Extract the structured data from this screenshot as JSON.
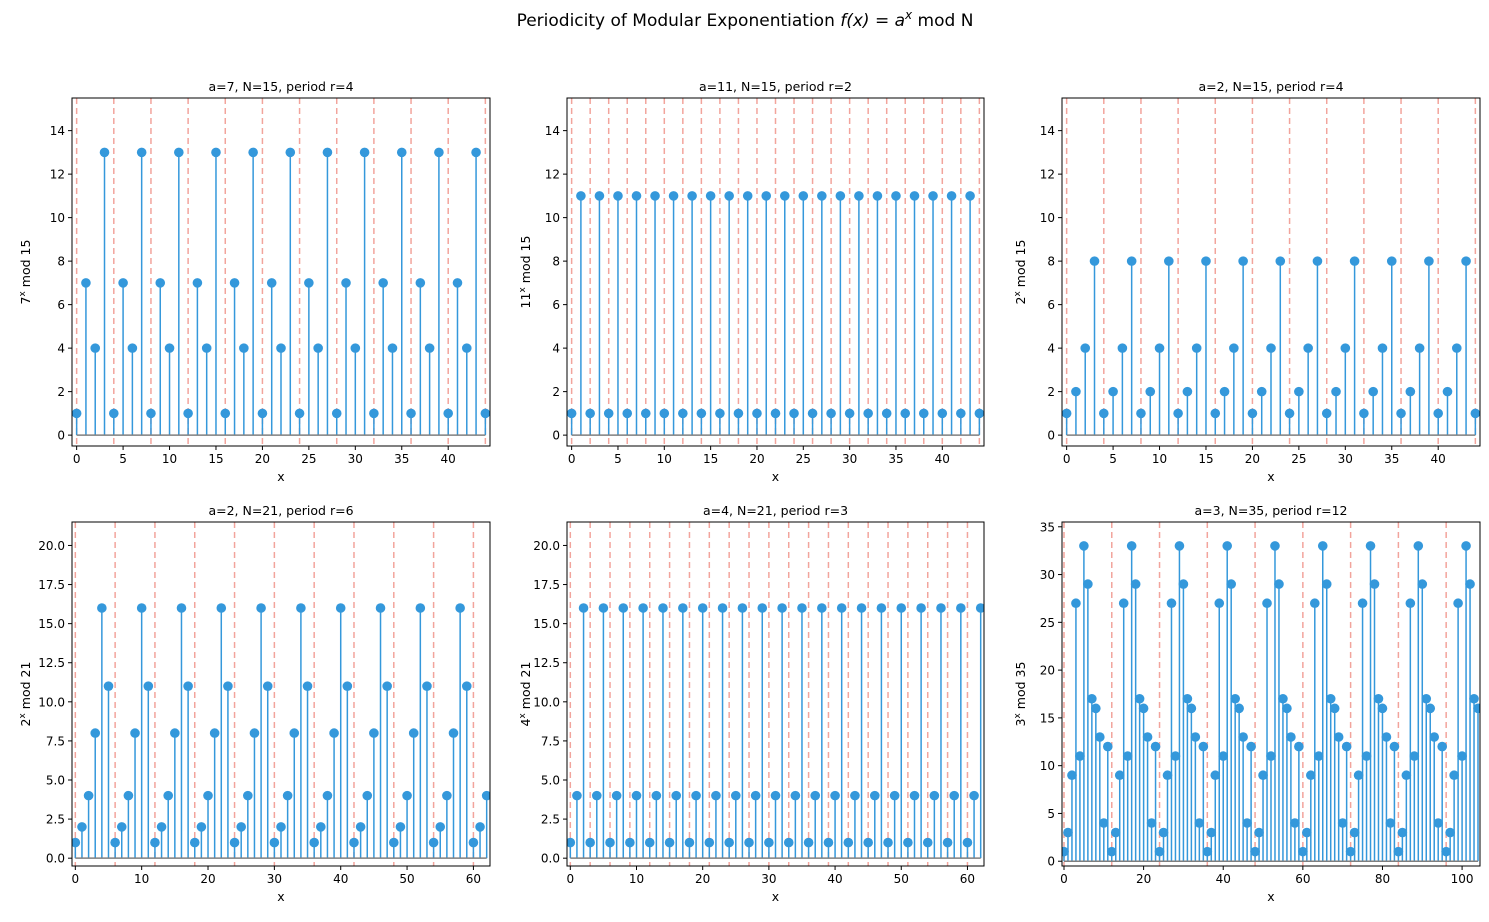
{
  "figure": {
    "title_prefix": "Periodicity of Modular Exponentiation ",
    "title_math": "f(x) = a",
    "title_sup": "x",
    "title_suffix": " mod N"
  },
  "colors": {
    "stem": "#3498db",
    "marker": "#3498db",
    "baseline": "#7f7f7f",
    "period_line": "#e74c3c",
    "axes": "#000000"
  },
  "chart_data": [
    {
      "type": "stem",
      "a": 7,
      "N": 15,
      "r": 4,
      "title": "a=7, N=15, period r=4",
      "xlabel": "x",
      "ylabel_base": "7",
      "ylabel_sup": "x",
      "ylabel_rest": " mod 15",
      "xlim": [
        -0.5,
        44.5
      ],
      "ylim": [
        -0.5,
        15.5
      ],
      "xticks": [
        0,
        5,
        10,
        15,
        20,
        25,
        30,
        35,
        40
      ],
      "yticks": [
        0,
        2,
        4,
        6,
        8,
        10,
        12,
        14
      ],
      "ytick_decimals": 0,
      "period_lines": [
        0,
        4,
        8,
        12,
        16,
        20,
        24,
        28,
        32,
        36,
        40,
        44
      ],
      "x": [
        0,
        1,
        2,
        3,
        4,
        5,
        6,
        7,
        8,
        9,
        10,
        11,
        12,
        13,
        14,
        15,
        16,
        17,
        18,
        19,
        20,
        21,
        22,
        23,
        24,
        25,
        26,
        27,
        28,
        29,
        30,
        31,
        32,
        33,
        34,
        35,
        36,
        37,
        38,
        39,
        40,
        41,
        42,
        43,
        44
      ],
      "y": [
        1,
        7,
        4,
        13,
        1,
        7,
        4,
        13,
        1,
        7,
        4,
        13,
        1,
        7,
        4,
        13,
        1,
        7,
        4,
        13,
        1,
        7,
        4,
        13,
        1,
        7,
        4,
        13,
        1,
        7,
        4,
        13,
        1,
        7,
        4,
        13,
        1,
        7,
        4,
        13,
        1,
        7,
        4,
        13,
        1
      ]
    },
    {
      "type": "stem",
      "a": 11,
      "N": 15,
      "r": 2,
      "title": "a=11, N=15, period r=2",
      "xlabel": "x",
      "ylabel_base": "11",
      "ylabel_sup": "x",
      "ylabel_rest": " mod 15",
      "xlim": [
        -0.5,
        44.5
      ],
      "ylim": [
        -0.5,
        15.5
      ],
      "xticks": [
        0,
        5,
        10,
        15,
        20,
        25,
        30,
        35,
        40
      ],
      "yticks": [
        0,
        2,
        4,
        6,
        8,
        10,
        12,
        14
      ],
      "ytick_decimals": 0,
      "period_lines": [
        0,
        2,
        4,
        6,
        8,
        10,
        12,
        14,
        16,
        18,
        20,
        22,
        24,
        26,
        28,
        30,
        32,
        34,
        36,
        38,
        40,
        42,
        44
      ],
      "x": [
        0,
        1,
        2,
        3,
        4,
        5,
        6,
        7,
        8,
        9,
        10,
        11,
        12,
        13,
        14,
        15,
        16,
        17,
        18,
        19,
        20,
        21,
        22,
        23,
        24,
        25,
        26,
        27,
        28,
        29,
        30,
        31,
        32,
        33,
        34,
        35,
        36,
        37,
        38,
        39,
        40,
        41,
        42,
        43,
        44
      ],
      "y": [
        1,
        11,
        1,
        11,
        1,
        11,
        1,
        11,
        1,
        11,
        1,
        11,
        1,
        11,
        1,
        11,
        1,
        11,
        1,
        11,
        1,
        11,
        1,
        11,
        1,
        11,
        1,
        11,
        1,
        11,
        1,
        11,
        1,
        11,
        1,
        11,
        1,
        11,
        1,
        11,
        1,
        11,
        1,
        11,
        1
      ]
    },
    {
      "type": "stem",
      "a": 2,
      "N": 15,
      "r": 4,
      "title": "a=2, N=15, period r=4",
      "xlabel": "x",
      "ylabel_base": "2",
      "ylabel_sup": "x",
      "ylabel_rest": " mod 15",
      "xlim": [
        -0.5,
        44.5
      ],
      "ylim": [
        -0.5,
        15.5
      ],
      "xticks": [
        0,
        5,
        10,
        15,
        20,
        25,
        30,
        35,
        40
      ],
      "yticks": [
        0,
        2,
        4,
        6,
        8,
        10,
        12,
        14
      ],
      "ytick_decimals": 0,
      "period_lines": [
        0,
        4,
        8,
        12,
        16,
        20,
        24,
        28,
        32,
        36,
        40,
        44
      ],
      "x": [
        0,
        1,
        2,
        3,
        4,
        5,
        6,
        7,
        8,
        9,
        10,
        11,
        12,
        13,
        14,
        15,
        16,
        17,
        18,
        19,
        20,
        21,
        22,
        23,
        24,
        25,
        26,
        27,
        28,
        29,
        30,
        31,
        32,
        33,
        34,
        35,
        36,
        37,
        38,
        39,
        40,
        41,
        42,
        43,
        44
      ],
      "y": [
        1,
        2,
        4,
        8,
        1,
        2,
        4,
        8,
        1,
        2,
        4,
        8,
        1,
        2,
        4,
        8,
        1,
        2,
        4,
        8,
        1,
        2,
        4,
        8,
        1,
        2,
        4,
        8,
        1,
        2,
        4,
        8,
        1,
        2,
        4,
        8,
        1,
        2,
        4,
        8,
        1,
        2,
        4,
        8,
        1
      ]
    },
    {
      "type": "stem",
      "a": 2,
      "N": 21,
      "r": 6,
      "title": "a=2, N=21, period r=6",
      "xlabel": "x",
      "ylabel_base": "2",
      "ylabel_sup": "x",
      "ylabel_rest": " mod 21",
      "xlim": [
        -0.5,
        62.5
      ],
      "ylim": [
        -0.5,
        21.5
      ],
      "xticks": [
        0,
        10,
        20,
        30,
        40,
        50,
        60
      ],
      "yticks": [
        0,
        2.5,
        5,
        7.5,
        10,
        12.5,
        15,
        17.5,
        20
      ],
      "ytick_decimals": 1,
      "period_lines": [
        0,
        6,
        12,
        18,
        24,
        30,
        36,
        42,
        48,
        54,
        60
      ],
      "x": [
        0,
        1,
        2,
        3,
        4,
        5,
        6,
        7,
        8,
        9,
        10,
        11,
        12,
        13,
        14,
        15,
        16,
        17,
        18,
        19,
        20,
        21,
        22,
        23,
        24,
        25,
        26,
        27,
        28,
        29,
        30,
        31,
        32,
        33,
        34,
        35,
        36,
        37,
        38,
        39,
        40,
        41,
        42,
        43,
        44,
        45,
        46,
        47,
        48,
        49,
        50,
        51,
        52,
        53,
        54,
        55,
        56,
        57,
        58,
        59,
        60,
        61,
        62
      ],
      "y": [
        1,
        2,
        4,
        8,
        16,
        11,
        1,
        2,
        4,
        8,
        16,
        11,
        1,
        2,
        4,
        8,
        16,
        11,
        1,
        2,
        4,
        8,
        16,
        11,
        1,
        2,
        4,
        8,
        16,
        11,
        1,
        2,
        4,
        8,
        16,
        11,
        1,
        2,
        4,
        8,
        16,
        11,
        1,
        2,
        4,
        8,
        16,
        11,
        1,
        2,
        4,
        8,
        16,
        11,
        1,
        2,
        4,
        8,
        16,
        11,
        1,
        2,
        4
      ]
    },
    {
      "type": "stem",
      "a": 4,
      "N": 21,
      "r": 3,
      "title": "a=4, N=21, period r=3",
      "xlabel": "x",
      "ylabel_base": "4",
      "ylabel_sup": "x",
      "ylabel_rest": " mod 21",
      "xlim": [
        -0.5,
        62.5
      ],
      "ylim": [
        -0.5,
        21.5
      ],
      "xticks": [
        0,
        10,
        20,
        30,
        40,
        50,
        60
      ],
      "yticks": [
        0,
        2.5,
        5,
        7.5,
        10,
        12.5,
        15,
        17.5,
        20
      ],
      "ytick_decimals": 1,
      "period_lines": [
        0,
        3,
        6,
        9,
        12,
        15,
        18,
        21,
        24,
        27,
        30,
        33,
        36,
        39,
        42,
        45,
        48,
        51,
        54,
        57,
        60
      ],
      "x": [
        0,
        1,
        2,
        3,
        4,
        5,
        6,
        7,
        8,
        9,
        10,
        11,
        12,
        13,
        14,
        15,
        16,
        17,
        18,
        19,
        20,
        21,
        22,
        23,
        24,
        25,
        26,
        27,
        28,
        29,
        30,
        31,
        32,
        33,
        34,
        35,
        36,
        37,
        38,
        39,
        40,
        41,
        42,
        43,
        44,
        45,
        46,
        47,
        48,
        49,
        50,
        51,
        52,
        53,
        54,
        55,
        56,
        57,
        58,
        59,
        60,
        61,
        62
      ],
      "y": [
        1,
        4,
        16,
        1,
        4,
        16,
        1,
        4,
        16,
        1,
        4,
        16,
        1,
        4,
        16,
        1,
        4,
        16,
        1,
        4,
        16,
        1,
        4,
        16,
        1,
        4,
        16,
        1,
        4,
        16,
        1,
        4,
        16,
        1,
        4,
        16,
        1,
        4,
        16,
        1,
        4,
        16,
        1,
        4,
        16,
        1,
        4,
        16,
        1,
        4,
        16,
        1,
        4,
        16,
        1,
        4,
        16,
        1,
        4,
        16,
        1,
        4,
        16
      ]
    },
    {
      "type": "stem",
      "a": 3,
      "N": 35,
      "r": 12,
      "title": "a=3, N=35, period r=12",
      "xlabel": "x",
      "ylabel_base": "3",
      "ylabel_sup": "x",
      "ylabel_rest": " mod 35",
      "xlim": [
        -0.5,
        104.5
      ],
      "ylim": [
        -0.5,
        35.5
      ],
      "xticks": [
        0,
        20,
        40,
        60,
        80,
        100
      ],
      "yticks": [
        0,
        5,
        10,
        15,
        20,
        25,
        30,
        35
      ],
      "ytick_decimals": 0,
      "period_lines": [
        0,
        12,
        24,
        36,
        48,
        60,
        72,
        84,
        96
      ],
      "x": [
        0,
        1,
        2,
        3,
        4,
        5,
        6,
        7,
        8,
        9,
        10,
        11,
        12,
        13,
        14,
        15,
        16,
        17,
        18,
        19,
        20,
        21,
        22,
        23,
        24,
        25,
        26,
        27,
        28,
        29,
        30,
        31,
        32,
        33,
        34,
        35,
        36,
        37,
        38,
        39,
        40,
        41,
        42,
        43,
        44,
        45,
        46,
        47,
        48,
        49,
        50,
        51,
        52,
        53,
        54,
        55,
        56,
        57,
        58,
        59,
        60,
        61,
        62,
        63,
        64,
        65,
        66,
        67,
        68,
        69,
        70,
        71,
        72,
        73,
        74,
        75,
        76,
        77,
        78,
        79,
        80,
        81,
        82,
        83,
        84,
        85,
        86,
        87,
        88,
        89,
        90,
        91,
        92,
        93,
        94,
        95,
        96,
        97,
        98,
        99,
        100,
        101,
        102,
        103,
        104
      ],
      "y": [
        1,
        3,
        9,
        27,
        11,
        33,
        29,
        17,
        16,
        13,
        4,
        12,
        1,
        3,
        9,
        27,
        11,
        33,
        29,
        17,
        16,
        13,
        4,
        12,
        1,
        3,
        9,
        27,
        11,
        33,
        29,
        17,
        16,
        13,
        4,
        12,
        1,
        3,
        9,
        27,
        11,
        33,
        29,
        17,
        16,
        13,
        4,
        12,
        1,
        3,
        9,
        27,
        11,
        33,
        29,
        17,
        16,
        13,
        4,
        12,
        1,
        3,
        9,
        27,
        11,
        33,
        29,
        17,
        16,
        13,
        4,
        12,
        1,
        3,
        9,
        27,
        11,
        33,
        29,
        17,
        16,
        13,
        4,
        12,
        1,
        3,
        9,
        27,
        11,
        33,
        29,
        17,
        16,
        13,
        4,
        12,
        1,
        3,
        9,
        27,
        11,
        33,
        29,
        17,
        16
      ]
    }
  ]
}
